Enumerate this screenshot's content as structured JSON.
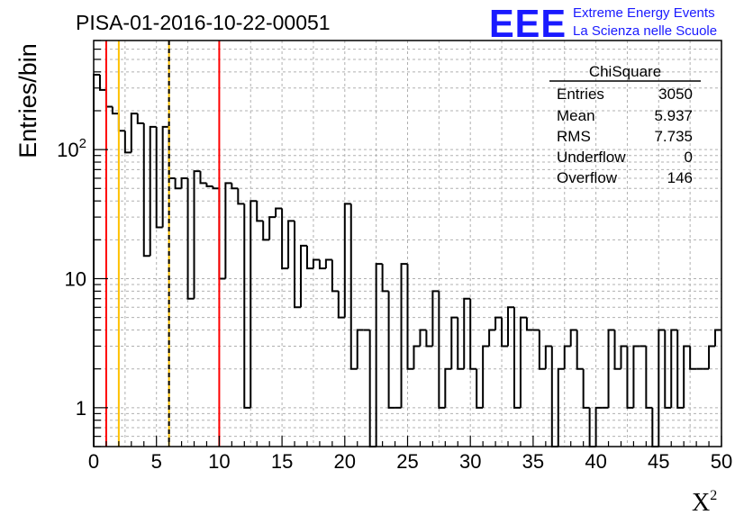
{
  "chart_data": {
    "type": "bar",
    "title": "PISA-01-2016-10-22-00051",
    "xlabel": "X",
    "xlabel_superscript": "2",
    "ylabel": "Entries/bin",
    "y_scale": "log",
    "xlim": [
      0,
      50
    ],
    "ylim": [
      0.5,
      700
    ],
    "grid": true,
    "x_ticks": [
      "0",
      "5",
      "10",
      "15",
      "20",
      "25",
      "30",
      "35",
      "40",
      "45",
      "50"
    ],
    "y_ticks": [
      {
        "value": 1,
        "base": "1",
        "exp": ""
      },
      {
        "value": 10,
        "base": "10",
        "exp": ""
      },
      {
        "value": 100,
        "base": "10",
        "exp": "2"
      }
    ],
    "bin_width": 0.5,
    "bin_start": 0,
    "values": [
      380,
      290,
      215,
      190,
      140,
      95,
      190,
      160,
      15,
      150,
      25,
      150,
      60,
      50,
      60,
      7,
      68,
      55,
      52,
      50,
      10,
      55,
      50,
      38,
      1,
      40,
      28,
      20,
      30,
      35,
      12,
      28,
      6,
      18,
      12,
      14,
      12,
      14,
      8,
      5,
      38,
      2,
      4,
      4,
      0.3,
      13,
      8,
      1,
      1,
      13,
      2,
      3,
      4,
      3,
      8,
      1,
      2,
      5,
      2,
      7,
      2,
      1,
      3,
      4,
      5,
      3,
      6,
      1,
      5,
      4,
      4,
      2,
      3,
      0.3,
      2,
      3,
      4,
      2,
      1,
      0.3,
      1,
      1,
      4,
      2,
      3,
      1,
      3,
      3,
      1,
      0.3,
      4,
      1,
      4,
      1,
      3,
      2,
      2,
      2,
      3,
      4
    ],
    "vertical_lines": [
      {
        "x": 1,
        "color": "#ff0000",
        "style": "solid"
      },
      {
        "x": 2,
        "color": "#ffc000",
        "style": "solid"
      },
      {
        "x": 6,
        "color": "#ffc000",
        "style": "solid"
      },
      {
        "x": 6,
        "color": "#000000",
        "style": "dashed"
      },
      {
        "x": 10,
        "color": "#ff0000",
        "style": "solid"
      }
    ]
  },
  "stats_box": {
    "title": "ChiSquare",
    "rows": [
      {
        "label": "Entries",
        "value": "3050"
      },
      {
        "label": "Mean",
        "value": "5.937"
      },
      {
        "label": "RMS",
        "value": "7.735"
      },
      {
        "label": "Underflow",
        "value": "0"
      },
      {
        "label": "Overflow",
        "value": "146"
      }
    ]
  },
  "logo": {
    "letters": "EEE",
    "line1": "Extreme Energy Events",
    "line2": "La Scienza nelle Scuole",
    "color": "#1a1aff"
  },
  "colors": {
    "histogram": "#000000",
    "grid": "#b0b0b0",
    "red_line": "#ff0000",
    "yellow_line": "#ffc000"
  }
}
